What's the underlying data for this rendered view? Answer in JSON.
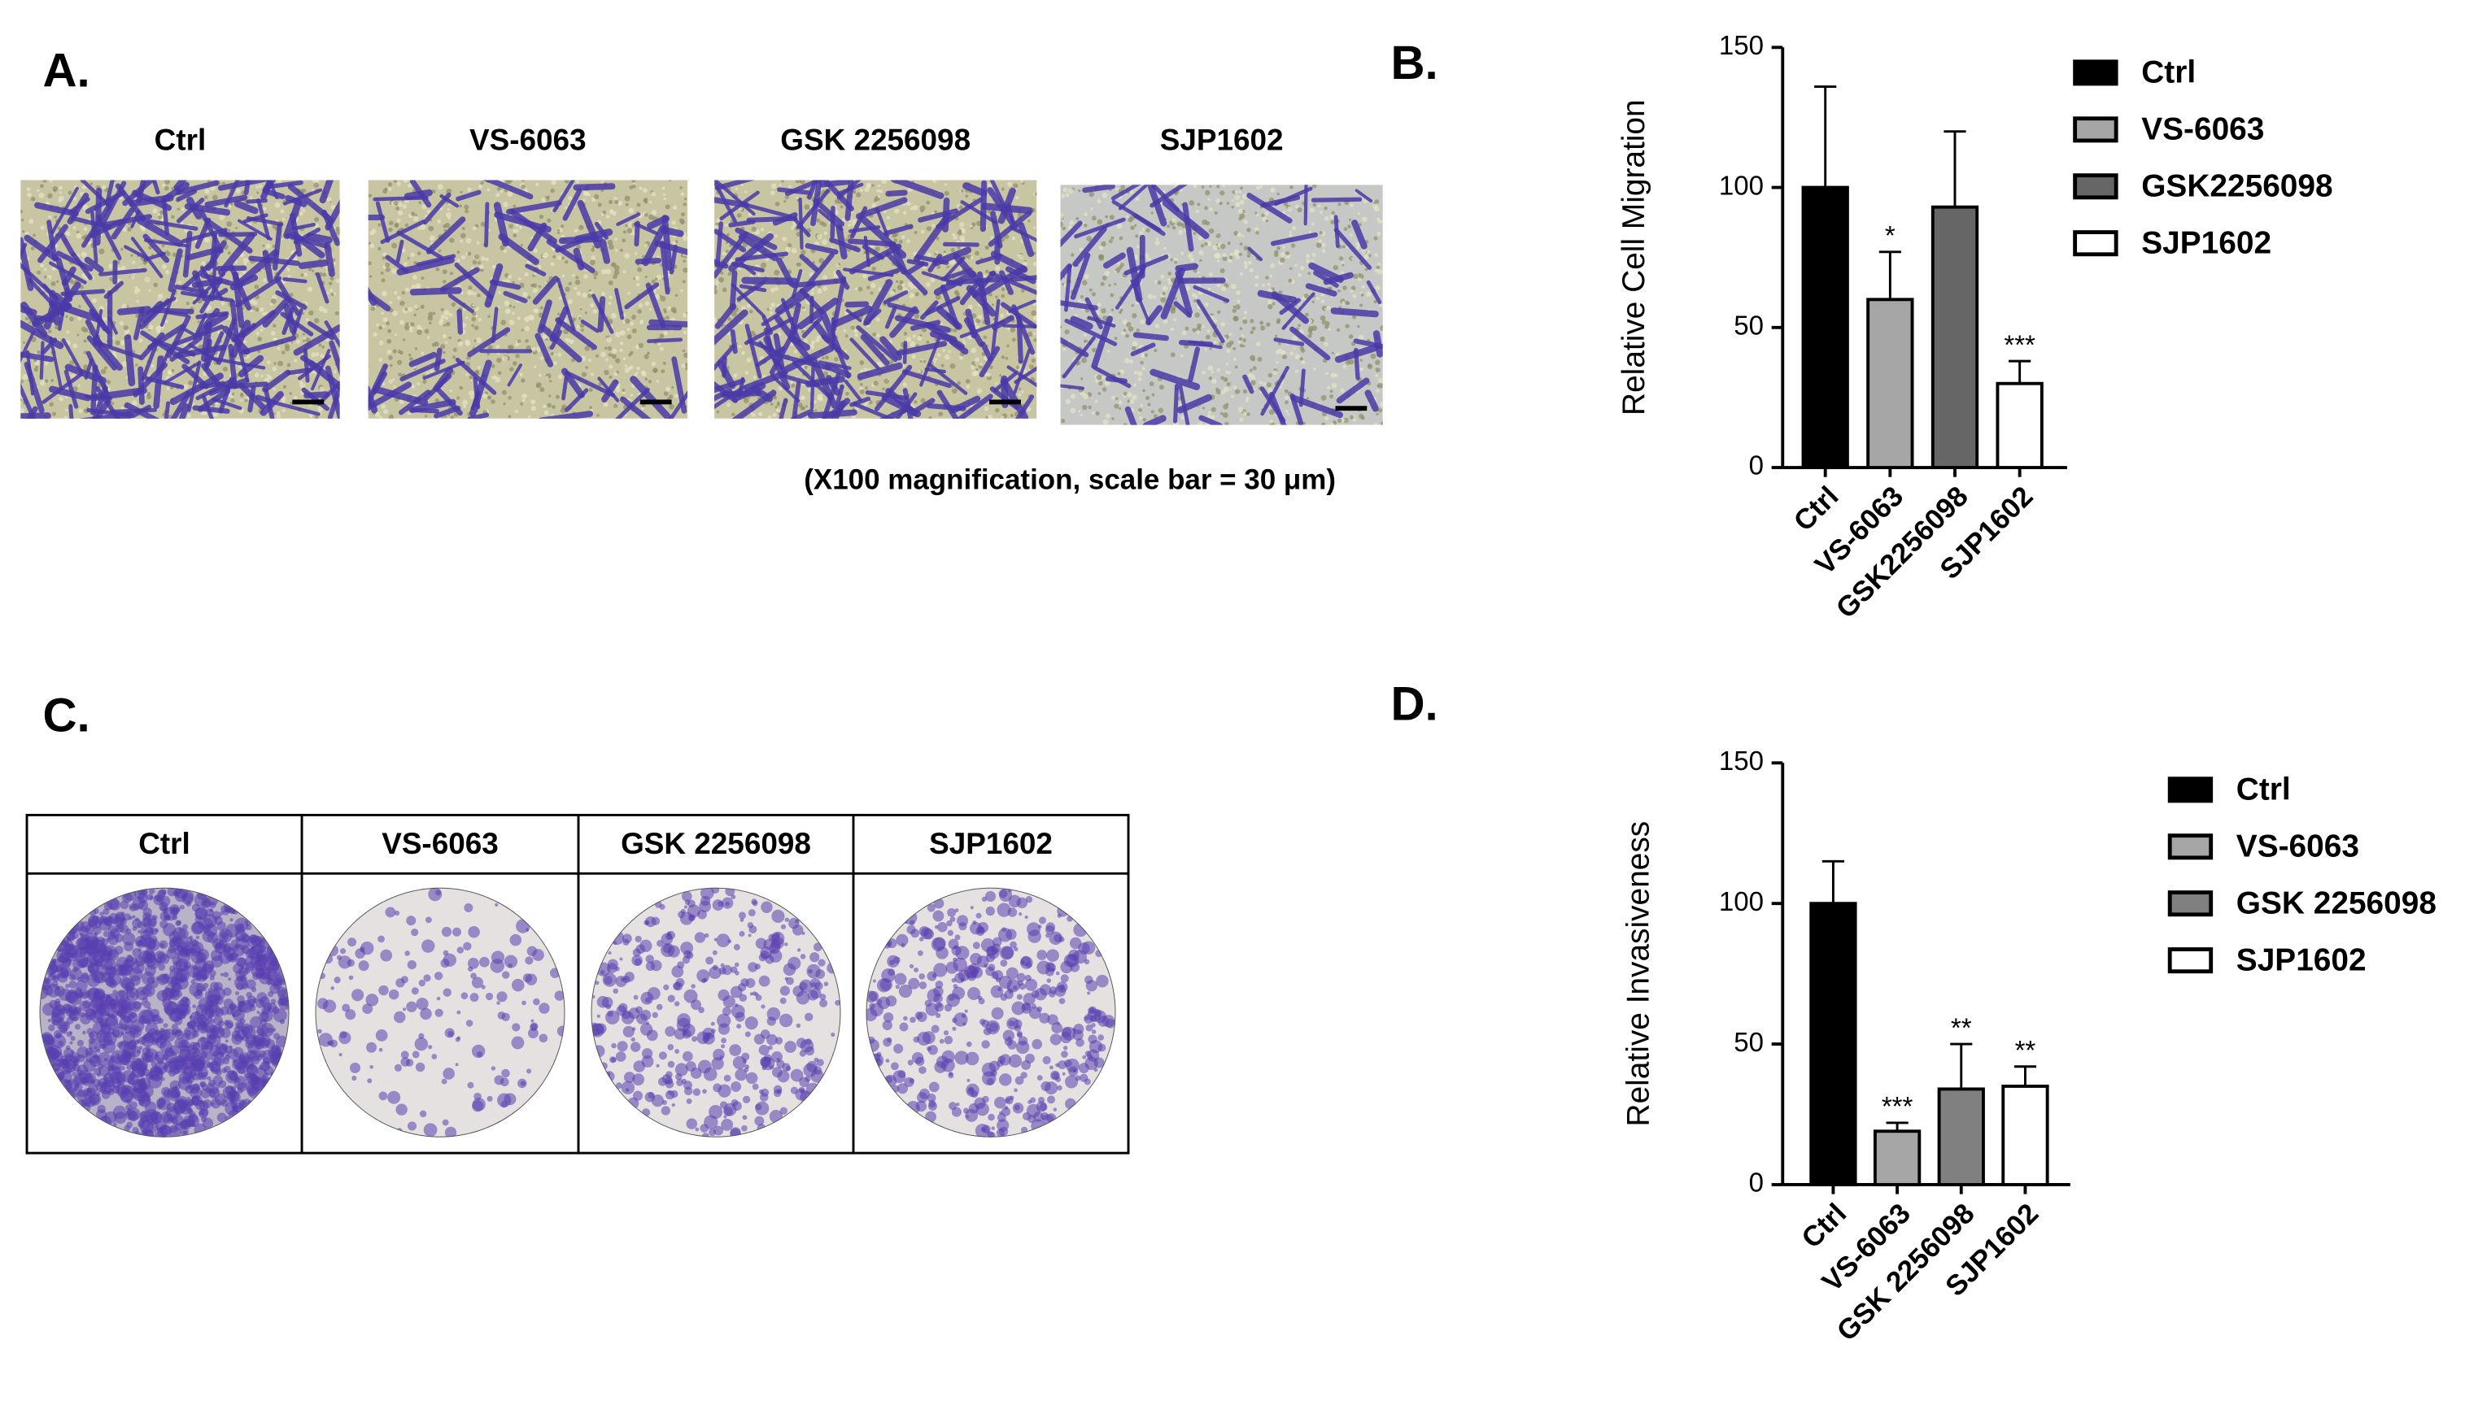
{
  "panel_a": {
    "label": "A.",
    "images": [
      "Ctrl",
      "VS-6063",
      "GSK 2256098",
      "SJP1602"
    ],
    "caption": "(X100 magnification, scale bar = 30 μm)"
  },
  "panel_b": {
    "label": "B."
  },
  "panel_c": {
    "label": "C.",
    "columns": [
      "Ctrl",
      "VS-6063",
      "GSK 2256098",
      "SJP1602"
    ]
  },
  "panel_d": {
    "label": "D."
  },
  "chart_data": [
    {
      "type": "bar",
      "y_label": "Relative Cell Migration",
      "categories": [
        "Ctrl",
        "VS-6063",
        "GSK2256098",
        "SJP1602"
      ],
      "values": [
        100,
        60,
        93,
        30
      ],
      "errors": [
        36,
        17,
        27,
        8
      ],
      "annotations": [
        null,
        "*",
        null,
        "***"
      ],
      "colors": [
        "#000000",
        "#a6a6a6",
        "#666666",
        "#ffffff"
      ],
      "ylim": [
        0,
        150
      ],
      "yticks": [
        0,
        50,
        100,
        150
      ],
      "legend": "right"
    },
    {
      "type": "bar",
      "y_label": "Relative Invasiveness",
      "categories": [
        "Ctrl",
        "VS-6063",
        "GSK 2256098",
        "SJP1602"
      ],
      "values": [
        100,
        19,
        34,
        35
      ],
      "errors": [
        15,
        3,
        16,
        7
      ],
      "annotations": [
        null,
        "***",
        "**",
        "**"
      ],
      "colors": [
        "#000000",
        "#a6a6a6",
        "#808080",
        "#ffffff"
      ],
      "ylim": [
        0,
        150
      ],
      "yticks": [
        0,
        50,
        100,
        150
      ],
      "legend": "right"
    }
  ]
}
